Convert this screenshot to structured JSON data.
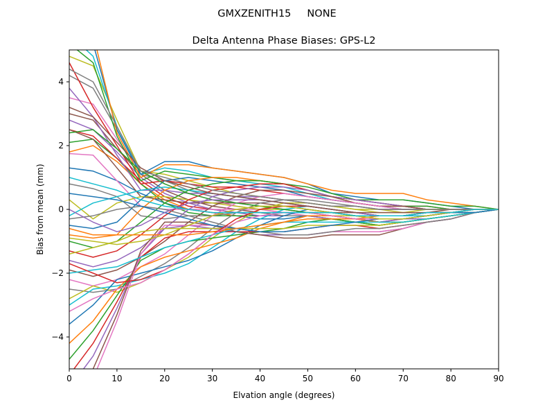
{
  "figure": {
    "suptitle": "GMXZENITH15     NONE"
  },
  "chart_data": {
    "type": "line",
    "title": "Delta Antenna Phase Biases: GPS-L2",
    "xlabel": "Elvation angle (degrees)",
    "ylabel": "Bias from mean (mm)",
    "xlim": [
      0,
      90
    ],
    "ylim": [
      -5,
      5
    ],
    "xticks": [
      0,
      10,
      20,
      30,
      40,
      50,
      60,
      70,
      80,
      90
    ],
    "yticks": [
      -4,
      -2,
      0,
      2,
      4
    ],
    "grid": false,
    "legend": "none",
    "x": [
      0,
      5,
      10,
      15,
      20,
      25,
      30,
      35,
      40,
      45,
      50,
      55,
      60,
      65,
      70,
      75,
      80,
      85,
      90
    ],
    "palette": [
      "#1f77b4",
      "#ff7f0e",
      "#2ca02c",
      "#d62728",
      "#9467bd",
      "#8c564b",
      "#e377c2",
      "#7f7f7f",
      "#bcbd22",
      "#17becf"
    ],
    "series": [
      {
        "values": [
          1.3,
          1.2,
          0.9,
          0.5,
          0.2,
          0.0,
          -0.1,
          -0.2,
          -0.3,
          -0.3,
          -0.2,
          -0.2,
          -0.3,
          -0.4,
          -0.4,
          -0.3,
          -0.2,
          -0.1,
          0.0
        ]
      },
      {
        "values": [
          1.8,
          2.0,
          1.5,
          0.8,
          0.3,
          0.0,
          -0.1,
          -0.2,
          -0.2,
          -0.2,
          -0.2,
          -0.3,
          -0.4,
          -0.5,
          -0.4,
          -0.3,
          -0.2,
          -0.1,
          0.0
        ]
      },
      {
        "values": [
          2.1,
          2.2,
          1.6,
          0.8,
          0.2,
          -0.1,
          -0.2,
          -0.2,
          -0.2,
          -0.2,
          -0.2,
          -0.3,
          -0.4,
          -0.5,
          -0.4,
          -0.3,
          -0.2,
          -0.1,
          0.0
        ]
      },
      {
        "values": [
          2.5,
          2.3,
          1.6,
          0.9,
          0.4,
          0.1,
          0.0,
          -0.1,
          -0.1,
          -0.2,
          -0.2,
          -0.2,
          -0.3,
          -0.4,
          -0.3,
          -0.3,
          -0.2,
          -0.1,
          0.0
        ]
      },
      {
        "values": [
          2.8,
          2.5,
          1.8,
          1.0,
          0.5,
          0.2,
          0.0,
          -0.1,
          -0.2,
          -0.2,
          -0.2,
          -0.3,
          -0.3,
          -0.4,
          -0.3,
          -0.3,
          -0.2,
          -0.1,
          0.0
        ]
      },
      {
        "values": [
          3.0,
          2.8,
          1.9,
          1.1,
          0.6,
          0.3,
          0.1,
          0.0,
          -0.1,
          -0.1,
          -0.1,
          -0.2,
          -0.3,
          -0.3,
          -0.3,
          -0.2,
          -0.1,
          -0.1,
          0.0
        ]
      },
      {
        "values": [
          3.5,
          3.3,
          2.2,
          1.2,
          0.8,
          0.5,
          0.3,
          0.1,
          0.0,
          -0.1,
          -0.2,
          -0.2,
          -0.3,
          -0.3,
          -0.3,
          -0.2,
          -0.1,
          -0.1,
          0.0
        ]
      },
      {
        "values": [
          4.2,
          3.8,
          2.5,
          1.1,
          0.9,
          0.6,
          0.4,
          0.2,
          0.1,
          0.0,
          -0.1,
          -0.1,
          -0.2,
          -0.2,
          -0.2,
          -0.2,
          -0.1,
          0.0,
          0.0
        ]
      },
      {
        "values": [
          4.8,
          4.5,
          2.8,
          1.2,
          1.1,
          0.9,
          0.7,
          0.5,
          0.4,
          0.3,
          0.2,
          0.1,
          0.0,
          0.0,
          -0.1,
          -0.1,
          -0.1,
          0.0,
          0.0
        ]
      },
      {
        "values": [
          5.5,
          4.8,
          2.6,
          1.1,
          1.3,
          1.2,
          1.0,
          0.9,
          0.8,
          0.7,
          0.5,
          0.3,
          0.2,
          0.1,
          0.1,
          0.0,
          0.0,
          0.0,
          0.0
        ]
      },
      {
        "values": [
          6.0,
          5.2,
          2.5,
          1.1,
          1.5,
          1.5,
          1.3,
          1.2,
          1.1,
          1.0,
          0.8,
          0.5,
          0.4,
          0.3,
          0.3,
          0.2,
          0.1,
          0.0,
          0.0
        ]
      },
      {
        "values": [
          6.5,
          5.5,
          2.4,
          1.0,
          1.4,
          1.4,
          1.3,
          1.2,
          1.1,
          1.0,
          0.8,
          0.6,
          0.5,
          0.5,
          0.5,
          0.3,
          0.2,
          0.1,
          0.0
        ]
      },
      {
        "values": [
          5.2,
          4.6,
          2.3,
          0.9,
          1.2,
          1.1,
          1.0,
          0.9,
          0.9,
          0.8,
          0.6,
          0.4,
          0.3,
          0.3,
          0.3,
          0.2,
          0.1,
          0.1,
          0.0
        ]
      },
      {
        "values": [
          4.6,
          3.2,
          2.0,
          0.8,
          0.9,
          0.8,
          0.7,
          0.7,
          0.6,
          0.5,
          0.4,
          0.3,
          0.2,
          0.1,
          0.1,
          0.1,
          0.0,
          0.0,
          0.0
        ]
      },
      {
        "values": [
          3.8,
          2.9,
          1.7,
          0.6,
          0.6,
          0.5,
          0.5,
          0.4,
          0.4,
          0.3,
          0.2,
          0.1,
          0.1,
          0.0,
          0.0,
          0.0,
          0.0,
          0.0,
          0.0
        ]
      },
      {
        "values": [
          2.5,
          2.2,
          1.3,
          0.4,
          0.3,
          0.2,
          0.2,
          0.2,
          0.2,
          0.1,
          0.0,
          -0.1,
          -0.1,
          -0.2,
          -0.2,
          -0.1,
          -0.1,
          0.0,
          0.0
        ]
      },
      {
        "values": [
          1.75,
          1.7,
          0.9,
          0.1,
          0.0,
          0.0,
          0.0,
          0.0,
          0.0,
          -0.1,
          -0.1,
          -0.2,
          -0.3,
          -0.3,
          -0.3,
          -0.2,
          -0.1,
          -0.1,
          0.0
        ]
      },
      {
        "values": [
          0.8,
          0.65,
          0.4,
          -0.2,
          -0.3,
          -0.2,
          -0.2,
          -0.1,
          -0.1,
          -0.2,
          -0.2,
          -0.2,
          -0.3,
          -0.3,
          -0.3,
          -0.2,
          -0.1,
          -0.1,
          0.0
        ]
      },
      {
        "values": [
          0.3,
          -0.3,
          0.2,
          0.4,
          0.4,
          0.3,
          0.2,
          0.1,
          0.0,
          0.0,
          -0.1,
          -0.2,
          -0.2,
          -0.3,
          -0.3,
          -0.2,
          -0.1,
          -0.1,
          0.0
        ]
      },
      {
        "values": [
          -0.2,
          0.2,
          0.4,
          0.6,
          0.7,
          0.6,
          0.5,
          0.4,
          0.3,
          0.2,
          0.1,
          0.0,
          -0.1,
          -0.2,
          -0.2,
          -0.2,
          -0.1,
          -0.1,
          0.0
        ]
      },
      {
        "values": [
          -0.5,
          -0.6,
          -0.4,
          0.3,
          0.9,
          1.0,
          0.9,
          0.8,
          0.7,
          0.6,
          0.4,
          0.3,
          0.2,
          0.1,
          0.0,
          0.0,
          0.0,
          0.0,
          0.0
        ]
      },
      {
        "values": [
          -0.8,
          -0.9,
          -0.8,
          0.0,
          0.6,
          0.9,
          1.0,
          1.0,
          0.9,
          0.8,
          0.6,
          0.4,
          0.2,
          0.1,
          0.1,
          0.0,
          0.0,
          0.0,
          0.0
        ]
      },
      {
        "values": [
          -1.0,
          -1.2,
          -1.0,
          -0.4,
          0.2,
          0.6,
          0.8,
          0.9,
          0.9,
          0.8,
          0.7,
          0.5,
          0.3,
          0.2,
          0.1,
          0.1,
          0.0,
          0.0,
          0.0
        ]
      },
      {
        "values": [
          -1.3,
          -1.5,
          -1.3,
          -0.8,
          -0.2,
          0.3,
          0.6,
          0.7,
          0.8,
          0.8,
          0.6,
          0.4,
          0.3,
          0.2,
          0.1,
          0.0,
          0.0,
          0.0,
          0.0
        ]
      },
      {
        "values": [
          -1.6,
          -1.8,
          -1.6,
          -1.2,
          -0.6,
          0.0,
          0.4,
          0.6,
          0.7,
          0.7,
          0.6,
          0.4,
          0.3,
          0.2,
          0.1,
          0.0,
          0.0,
          0.0,
          0.0
        ]
      },
      {
        "values": [
          -1.9,
          -2.1,
          -1.9,
          -1.5,
          -1.0,
          -0.4,
          0.1,
          0.4,
          0.6,
          0.6,
          0.5,
          0.4,
          0.2,
          0.1,
          0.1,
          0.0,
          0.0,
          0.0,
          0.0
        ]
      },
      {
        "values": [
          -2.2,
          -2.4,
          -2.2,
          -1.8,
          -1.4,
          -0.8,
          -0.2,
          0.2,
          0.4,
          0.5,
          0.4,
          0.3,
          0.2,
          0.1,
          0.0,
          0.0,
          0.0,
          0.0,
          0.0
        ]
      },
      {
        "values": [
          -2.5,
          -2.6,
          -2.5,
          -2.1,
          -1.7,
          -1.2,
          -0.6,
          -0.1,
          0.2,
          0.3,
          0.3,
          0.2,
          0.1,
          0.0,
          0.0,
          0.0,
          0.0,
          0.0,
          0.0
        ]
      },
      {
        "values": [
          -2.8,
          -2.4,
          -2.6,
          -2.3,
          -1.9,
          -1.5,
          -0.9,
          -0.4,
          0.0,
          0.2,
          0.2,
          0.1,
          0.0,
          -0.1,
          -0.1,
          0.0,
          0.0,
          0.0,
          0.0
        ]
      },
      {
        "values": [
          -3.0,
          -2.5,
          -2.4,
          -2.2,
          -2.0,
          -1.7,
          -1.2,
          -0.7,
          -0.3,
          0.0,
          0.1,
          0.0,
          -0.1,
          -0.2,
          -0.2,
          -0.1,
          -0.1,
          0.0,
          0.0
        ]
      },
      {
        "values": [
          -3.6,
          -3.0,
          -2.2,
          -2.0,
          -1.8,
          -1.6,
          -1.3,
          -0.9,
          -0.5,
          -0.2,
          0.0,
          -0.1,
          -0.2,
          -0.3,
          -0.3,
          -0.2,
          -0.1,
          -0.1,
          0.0
        ]
      },
      {
        "values": [
          -4.2,
          -3.5,
          -2.5,
          -1.8,
          -1.5,
          -1.3,
          -1.1,
          -0.9,
          -0.6,
          -0.4,
          -0.2,
          -0.2,
          -0.3,
          -0.4,
          -0.4,
          -0.3,
          -0.2,
          -0.1,
          0.0
        ]
      },
      {
        "values": [
          -4.7,
          -3.8,
          -2.7,
          -1.6,
          -1.2,
          -1.0,
          -0.9,
          -0.8,
          -0.7,
          -0.6,
          -0.4,
          -0.3,
          -0.4,
          -0.5,
          -0.4,
          -0.3,
          -0.2,
          -0.1,
          0.0
        ]
      },
      {
        "values": [
          -5.2,
          -4.2,
          -2.9,
          -1.5,
          -0.9,
          -0.7,
          -0.7,
          -0.7,
          -0.7,
          -0.7,
          -0.6,
          -0.5,
          -0.5,
          -0.6,
          -0.5,
          -0.4,
          -0.3,
          -0.1,
          0.0
        ]
      },
      {
        "values": [
          -5.6,
          -4.6,
          -3.1,
          -1.4,
          -0.6,
          -0.5,
          -0.6,
          -0.7,
          -0.8,
          -0.8,
          -0.8,
          -0.7,
          -0.7,
          -0.7,
          -0.6,
          -0.4,
          -0.3,
          -0.1,
          0.0
        ]
      },
      {
        "values": [
          -6.0,
          -5.0,
          -3.3,
          -1.3,
          -0.4,
          -0.4,
          -0.5,
          -0.7,
          -0.8,
          -0.9,
          -0.9,
          -0.8,
          -0.8,
          -0.8,
          -0.6,
          -0.4,
          -0.3,
          -0.1,
          0.0
        ]
      },
      {
        "values": [
          -6.4,
          -5.3,
          -3.5,
          -1.4,
          -0.5,
          -0.5,
          -0.5,
          -0.6,
          -0.7,
          -0.8,
          -0.8,
          -0.7,
          -0.7,
          -0.7,
          -0.6,
          -0.4,
          -0.3,
          -0.1,
          0.0
        ]
      },
      {
        "values": [
          -0.3,
          -0.2,
          0.0,
          0.1,
          0.0,
          -0.2,
          -0.4,
          -0.6,
          -0.7,
          -0.8,
          -0.8,
          -0.7,
          -0.6,
          -0.6,
          -0.5,
          -0.4,
          -0.3,
          -0.1,
          0.0
        ]
      },
      {
        "values": [
          -1.4,
          -1.2,
          -1.0,
          -0.7,
          -0.6,
          -0.6,
          -0.6,
          -0.6,
          -0.6,
          -0.6,
          -0.5,
          -0.5,
          -0.5,
          -0.5,
          -0.4,
          -0.3,
          -0.2,
          -0.1,
          0.0
        ]
      },
      {
        "values": [
          -2.0,
          -1.9,
          -1.8,
          -1.5,
          -1.2,
          -1.0,
          -0.8,
          -0.6,
          -0.5,
          -0.4,
          -0.4,
          -0.4,
          -0.4,
          -0.4,
          -0.4,
          -0.3,
          -0.2,
          -0.1,
          0.0
        ]
      },
      {
        "values": [
          0.5,
          0.4,
          0.3,
          0.1,
          -0.1,
          -0.3,
          -0.5,
          -0.6,
          -0.7,
          -0.7,
          -0.6,
          -0.5,
          -0.4,
          -0.3,
          -0.3,
          -0.2,
          -0.1,
          -0.1,
          0.0
        ]
      },
      {
        "values": [
          -0.6,
          -0.8,
          -0.8,
          -0.8,
          -0.8,
          -0.8,
          -0.7,
          -0.6,
          -0.5,
          -0.4,
          -0.3,
          -0.3,
          -0.3,
          -0.2,
          -0.2,
          -0.1,
          -0.1,
          0.0,
          0.0
        ]
      },
      {
        "values": [
          2.4,
          2.5,
          1.9,
          1.2,
          0.8,
          0.5,
          0.3,
          0.2,
          0.1,
          0.0,
          -0.1,
          -0.1,
          -0.2,
          -0.2,
          -0.2,
          -0.1,
          -0.1,
          0.0,
          0.0
        ]
      },
      {
        "values": [
          -1.7,
          -2.0,
          -2.3,
          -2.2,
          -1.9,
          -1.4,
          -0.8,
          -0.3,
          0.0,
          0.1,
          0.1,
          0.0,
          -0.1,
          -0.2,
          -0.2,
          -0.1,
          -0.1,
          0.0,
          0.0
        ]
      },
      {
        "values": [
          0.0,
          -0.4,
          -0.7,
          -0.5,
          -0.1,
          0.2,
          0.3,
          0.3,
          0.3,
          0.2,
          0.1,
          0.0,
          -0.1,
          -0.2,
          -0.2,
          -0.1,
          -0.1,
          0.0,
          0.0
        ]
      },
      {
        "values": [
          3.2,
          2.9,
          2.1,
          1.3,
          0.9,
          0.7,
          0.5,
          0.4,
          0.3,
          0.2,
          0.1,
          0.0,
          -0.1,
          -0.1,
          -0.1,
          -0.1,
          0.0,
          0.0,
          0.0
        ]
      },
      {
        "values": [
          -3.2,
          -2.8,
          -2.5,
          -2.3,
          -1.9,
          -1.4,
          -0.8,
          -0.4,
          -0.2,
          -0.1,
          -0.1,
          -0.2,
          -0.3,
          -0.3,
          -0.3,
          -0.2,
          -0.1,
          0.0,
          0.0
        ]
      },
      {
        "values": [
          4.4,
          4.0,
          2.6,
          1.2,
          1.0,
          0.8,
          0.6,
          0.5,
          0.4,
          0.3,
          0.2,
          0.1,
          0.1,
          0.0,
          0.0,
          0.0,
          0.0,
          0.0,
          0.0
        ]
      },
      {
        "values": [
          -0.9,
          -1.0,
          -1.1,
          -1.0,
          -0.8,
          -0.5,
          -0.2,
          0.0,
          0.1,
          0.1,
          0.0,
          -0.1,
          -0.2,
          -0.3,
          -0.3,
          -0.2,
          -0.1,
          0.0,
          0.0
        ]
      },
      {
        "values": [
          1.0,
          0.8,
          0.6,
          0.3,
          0.1,
          0.0,
          -0.1,
          -0.1,
          -0.1,
          -0.1,
          -0.1,
          -0.1,
          -0.2,
          -0.2,
          -0.2,
          -0.1,
          -0.1,
          0.0,
          0.0
        ]
      }
    ]
  }
}
